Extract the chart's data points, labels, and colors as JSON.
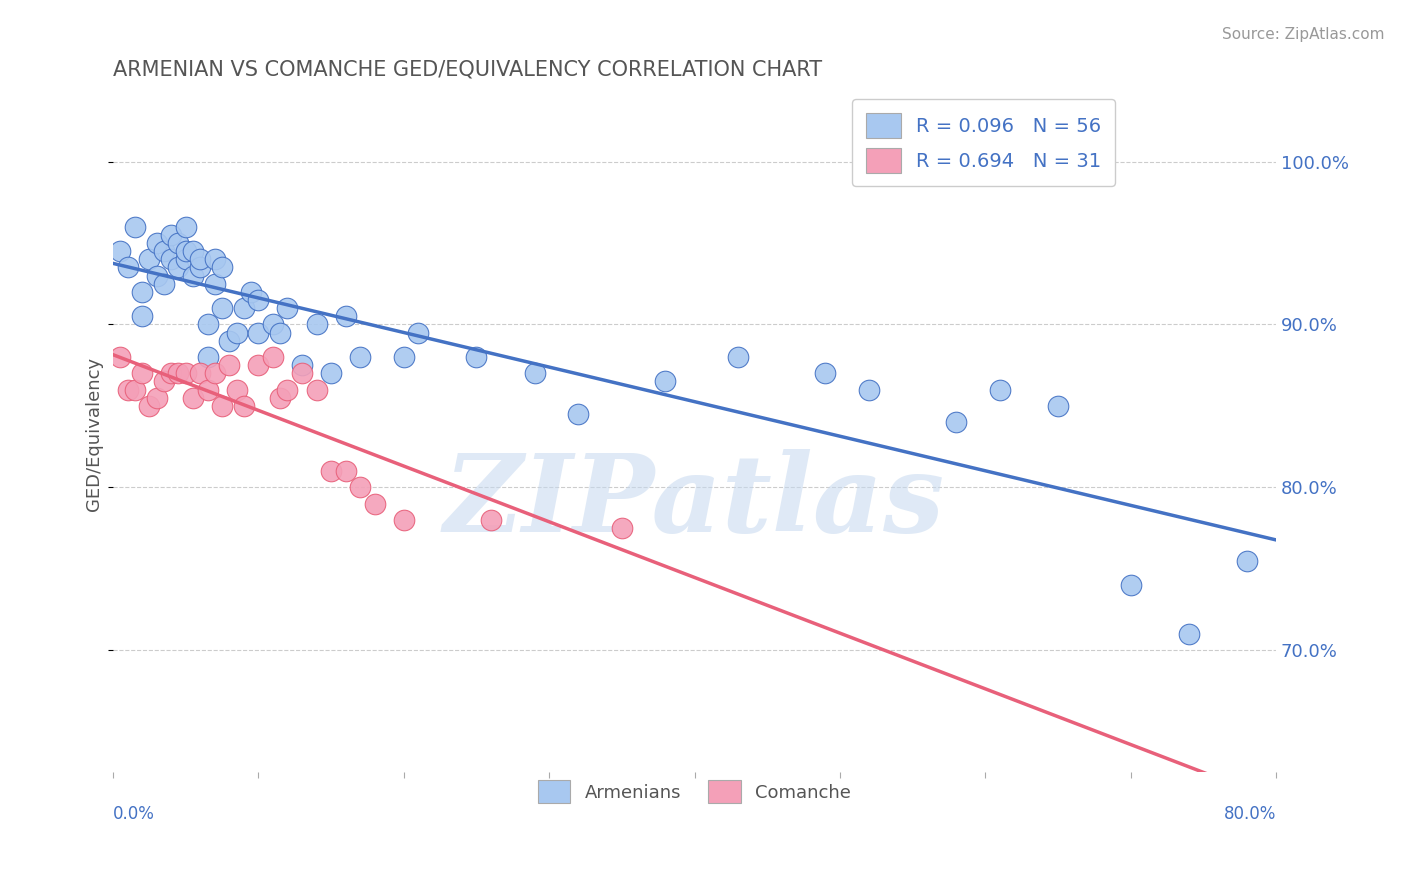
{
  "title": "ARMENIAN VS COMANCHE GED/EQUIVALENCY CORRELATION CHART",
  "source": "Source: ZipAtlas.com",
  "ylabel": "GED/Equivalency",
  "ytick_labels": [
    "70.0%",
    "80.0%",
    "90.0%",
    "100.0%"
  ],
  "ytick_values": [
    0.7,
    0.8,
    0.9,
    1.0
  ],
  "xlim": [
    0.0,
    0.8
  ],
  "ylim": [
    0.625,
    1.04
  ],
  "armenian_color": "#a8c8f0",
  "comanche_color": "#f4a0b8",
  "armenian_line_color": "#4472c4",
  "comanche_line_color": "#e8607a",
  "watermark_text": "ZIPatlas",
  "armenian_x": [
    0.005,
    0.01,
    0.015,
    0.02,
    0.02,
    0.025,
    0.03,
    0.03,
    0.035,
    0.035,
    0.04,
    0.04,
    0.045,
    0.045,
    0.05,
    0.05,
    0.05,
    0.055,
    0.055,
    0.06,
    0.06,
    0.065,
    0.065,
    0.07,
    0.07,
    0.075,
    0.075,
    0.08,
    0.085,
    0.09,
    0.095,
    0.1,
    0.1,
    0.11,
    0.115,
    0.12,
    0.13,
    0.14,
    0.15,
    0.16,
    0.17,
    0.2,
    0.21,
    0.25,
    0.29,
    0.32,
    0.38,
    0.43,
    0.49,
    0.52,
    0.58,
    0.61,
    0.65,
    0.7,
    0.74,
    0.78
  ],
  "armenian_y": [
    0.945,
    0.935,
    0.96,
    0.92,
    0.905,
    0.94,
    0.95,
    0.93,
    0.925,
    0.945,
    0.955,
    0.94,
    0.935,
    0.95,
    0.94,
    0.945,
    0.96,
    0.93,
    0.945,
    0.935,
    0.94,
    0.88,
    0.9,
    0.94,
    0.925,
    0.935,
    0.91,
    0.89,
    0.895,
    0.91,
    0.92,
    0.895,
    0.915,
    0.9,
    0.895,
    0.91,
    0.875,
    0.9,
    0.87,
    0.905,
    0.88,
    0.88,
    0.895,
    0.88,
    0.87,
    0.845,
    0.865,
    0.88,
    0.87,
    0.86,
    0.84,
    0.86,
    0.85,
    0.74,
    0.71,
    0.755
  ],
  "comanche_x": [
    0.005,
    0.01,
    0.015,
    0.02,
    0.025,
    0.03,
    0.035,
    0.04,
    0.045,
    0.05,
    0.055,
    0.06,
    0.065,
    0.07,
    0.075,
    0.08,
    0.085,
    0.09,
    0.1,
    0.11,
    0.115,
    0.12,
    0.13,
    0.14,
    0.15,
    0.16,
    0.17,
    0.18,
    0.2,
    0.26,
    0.35
  ],
  "comanche_y": [
    0.88,
    0.86,
    0.86,
    0.87,
    0.85,
    0.855,
    0.865,
    0.87,
    0.87,
    0.87,
    0.855,
    0.87,
    0.86,
    0.87,
    0.85,
    0.875,
    0.86,
    0.85,
    0.875,
    0.88,
    0.855,
    0.86,
    0.87,
    0.86,
    0.81,
    0.81,
    0.8,
    0.79,
    0.78,
    0.78,
    0.775
  ],
  "grid_color": "#cccccc",
  "bg_color": "#ffffff",
  "title_color": "#555555",
  "axis_label_color": "#4472c4",
  "source_color": "#999999"
}
